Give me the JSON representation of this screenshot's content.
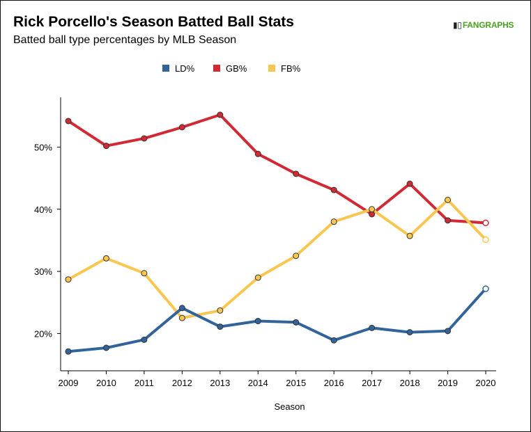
{
  "title": "Rick Porcello's Season Batted Ball Stats",
  "subtitle": "Batted ball type percentages by MLB Season",
  "logo_text": "FANGRAPHS",
  "chart_data": {
    "type": "line",
    "xlabel": "Season",
    "ylabel": "",
    "x": [
      "2009",
      "2010",
      "2011",
      "2012",
      "2013",
      "2014",
      "2015",
      "2016",
      "2017",
      "2018",
      "2019",
      "2020"
    ],
    "ylim": [
      14,
      58
    ],
    "yticks": [
      {
        "value": 20,
        "label": "20%"
      },
      {
        "value": 30,
        "label": "30%"
      },
      {
        "value": 40,
        "label": "40%"
      },
      {
        "value": 50,
        "label": "50%"
      }
    ],
    "legend_position": "top",
    "grid": false,
    "series": [
      {
        "name": "LD%",
        "color": "#32649b",
        "values": [
          17.1,
          17.7,
          19.0,
          24.1,
          21.1,
          22.0,
          21.8,
          18.9,
          20.9,
          20.2,
          20.4,
          27.2
        ]
      },
      {
        "name": "GB%",
        "color": "#d12a35",
        "values": [
          54.2,
          50.2,
          51.4,
          53.2,
          55.2,
          48.9,
          45.7,
          43.1,
          39.2,
          44.1,
          38.2,
          37.8
        ]
      },
      {
        "name": "FB%",
        "color": "#f9c74f",
        "values": [
          28.7,
          32.1,
          29.7,
          22.5,
          23.7,
          29.0,
          32.5,
          38.0,
          40.0,
          35.7,
          41.5,
          35.1
        ]
      }
    ]
  }
}
